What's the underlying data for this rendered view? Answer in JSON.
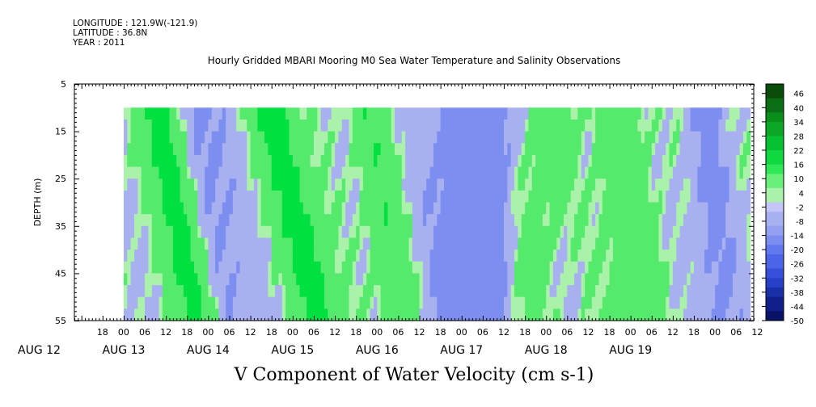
{
  "header": {
    "longitude": "LONGITUDE : 121.9W(-121.9)",
    "latitude": "LATITUDE : 36.8N",
    "year": "YEAR : 2011"
  },
  "title": "Hourly Gridded MBARI Mooring M0 Sea Water Temperature and Salinity Observations",
  "variable_label": "V Component of Water Velocity (cm s-1)",
  "chart_data": {
    "type": "heatmap",
    "title": "Hourly Gridded MBARI Mooring M0 Sea Water Temperature and Salinity Observations",
    "ylabel": "DEPTH (m)",
    "xlabel": "",
    "ylim": [
      55,
      5
    ],
    "y_ticks": [
      5,
      15,
      25,
      35,
      45,
      55
    ],
    "data_depth_range": [
      10,
      55
    ],
    "x_range_hours": [
      -14,
      179
    ],
    "data_time_range_hours": [
      0,
      178
    ],
    "x_hour_ticks": [
      "18",
      "00",
      "06",
      "12",
      "18",
      "00",
      "06",
      "12",
      "18",
      "00",
      "06",
      "12",
      "18",
      "00",
      "06",
      "12",
      "18",
      "00",
      "06",
      "12",
      "18",
      "00",
      "06",
      "12",
      "18",
      "00",
      "06",
      "12",
      "18",
      "00",
      "06",
      "12"
    ],
    "x_day_labels": [
      "AUG 12",
      "AUG 13",
      "AUG 14",
      "AUG 15",
      "AUG 16",
      "AUG 17",
      "AUG 18",
      "AUG 19"
    ],
    "colorbar": {
      "min": -50,
      "max": 50,
      "labels": [
        "46",
        "40",
        "34",
        "28",
        "22",
        "16",
        "10",
        "4",
        "-2",
        "-8",
        "-14",
        "-20",
        "-26",
        "-32",
        "-38",
        "-44",
        "-50"
      ]
    },
    "colors": {
      "positive_strong": "#00e040",
      "positive_light": "#aaf2aa",
      "negative_light": "#a9b0f0",
      "negative_strong": "#7c8ef0"
    },
    "bands": [
      {
        "center_hour": 10,
        "tilt_hours": 12,
        "width": 6,
        "value": 22
      },
      {
        "center_hour": 42,
        "tilt_hours": 14,
        "width": 6,
        "value": 20
      },
      {
        "center_hour": 69,
        "tilt_hours": 10,
        "width": 5,
        "value": 12
      },
      {
        "center_hour": 20,
        "tilt_hours": 8,
        "width": 8,
        "value": -10
      },
      {
        "center_hour": 100,
        "tilt_hours": 0,
        "width": 12,
        "value": -16
      },
      {
        "center_hour": 120,
        "tilt_hours": -8,
        "width": 8,
        "value": 8
      },
      {
        "center_hour": 140,
        "tilt_hours": 6,
        "width": 8,
        "value": 8
      },
      {
        "center_hour": 165,
        "tilt_hours": 5,
        "width": 6,
        "value": -8
      }
    ]
  }
}
